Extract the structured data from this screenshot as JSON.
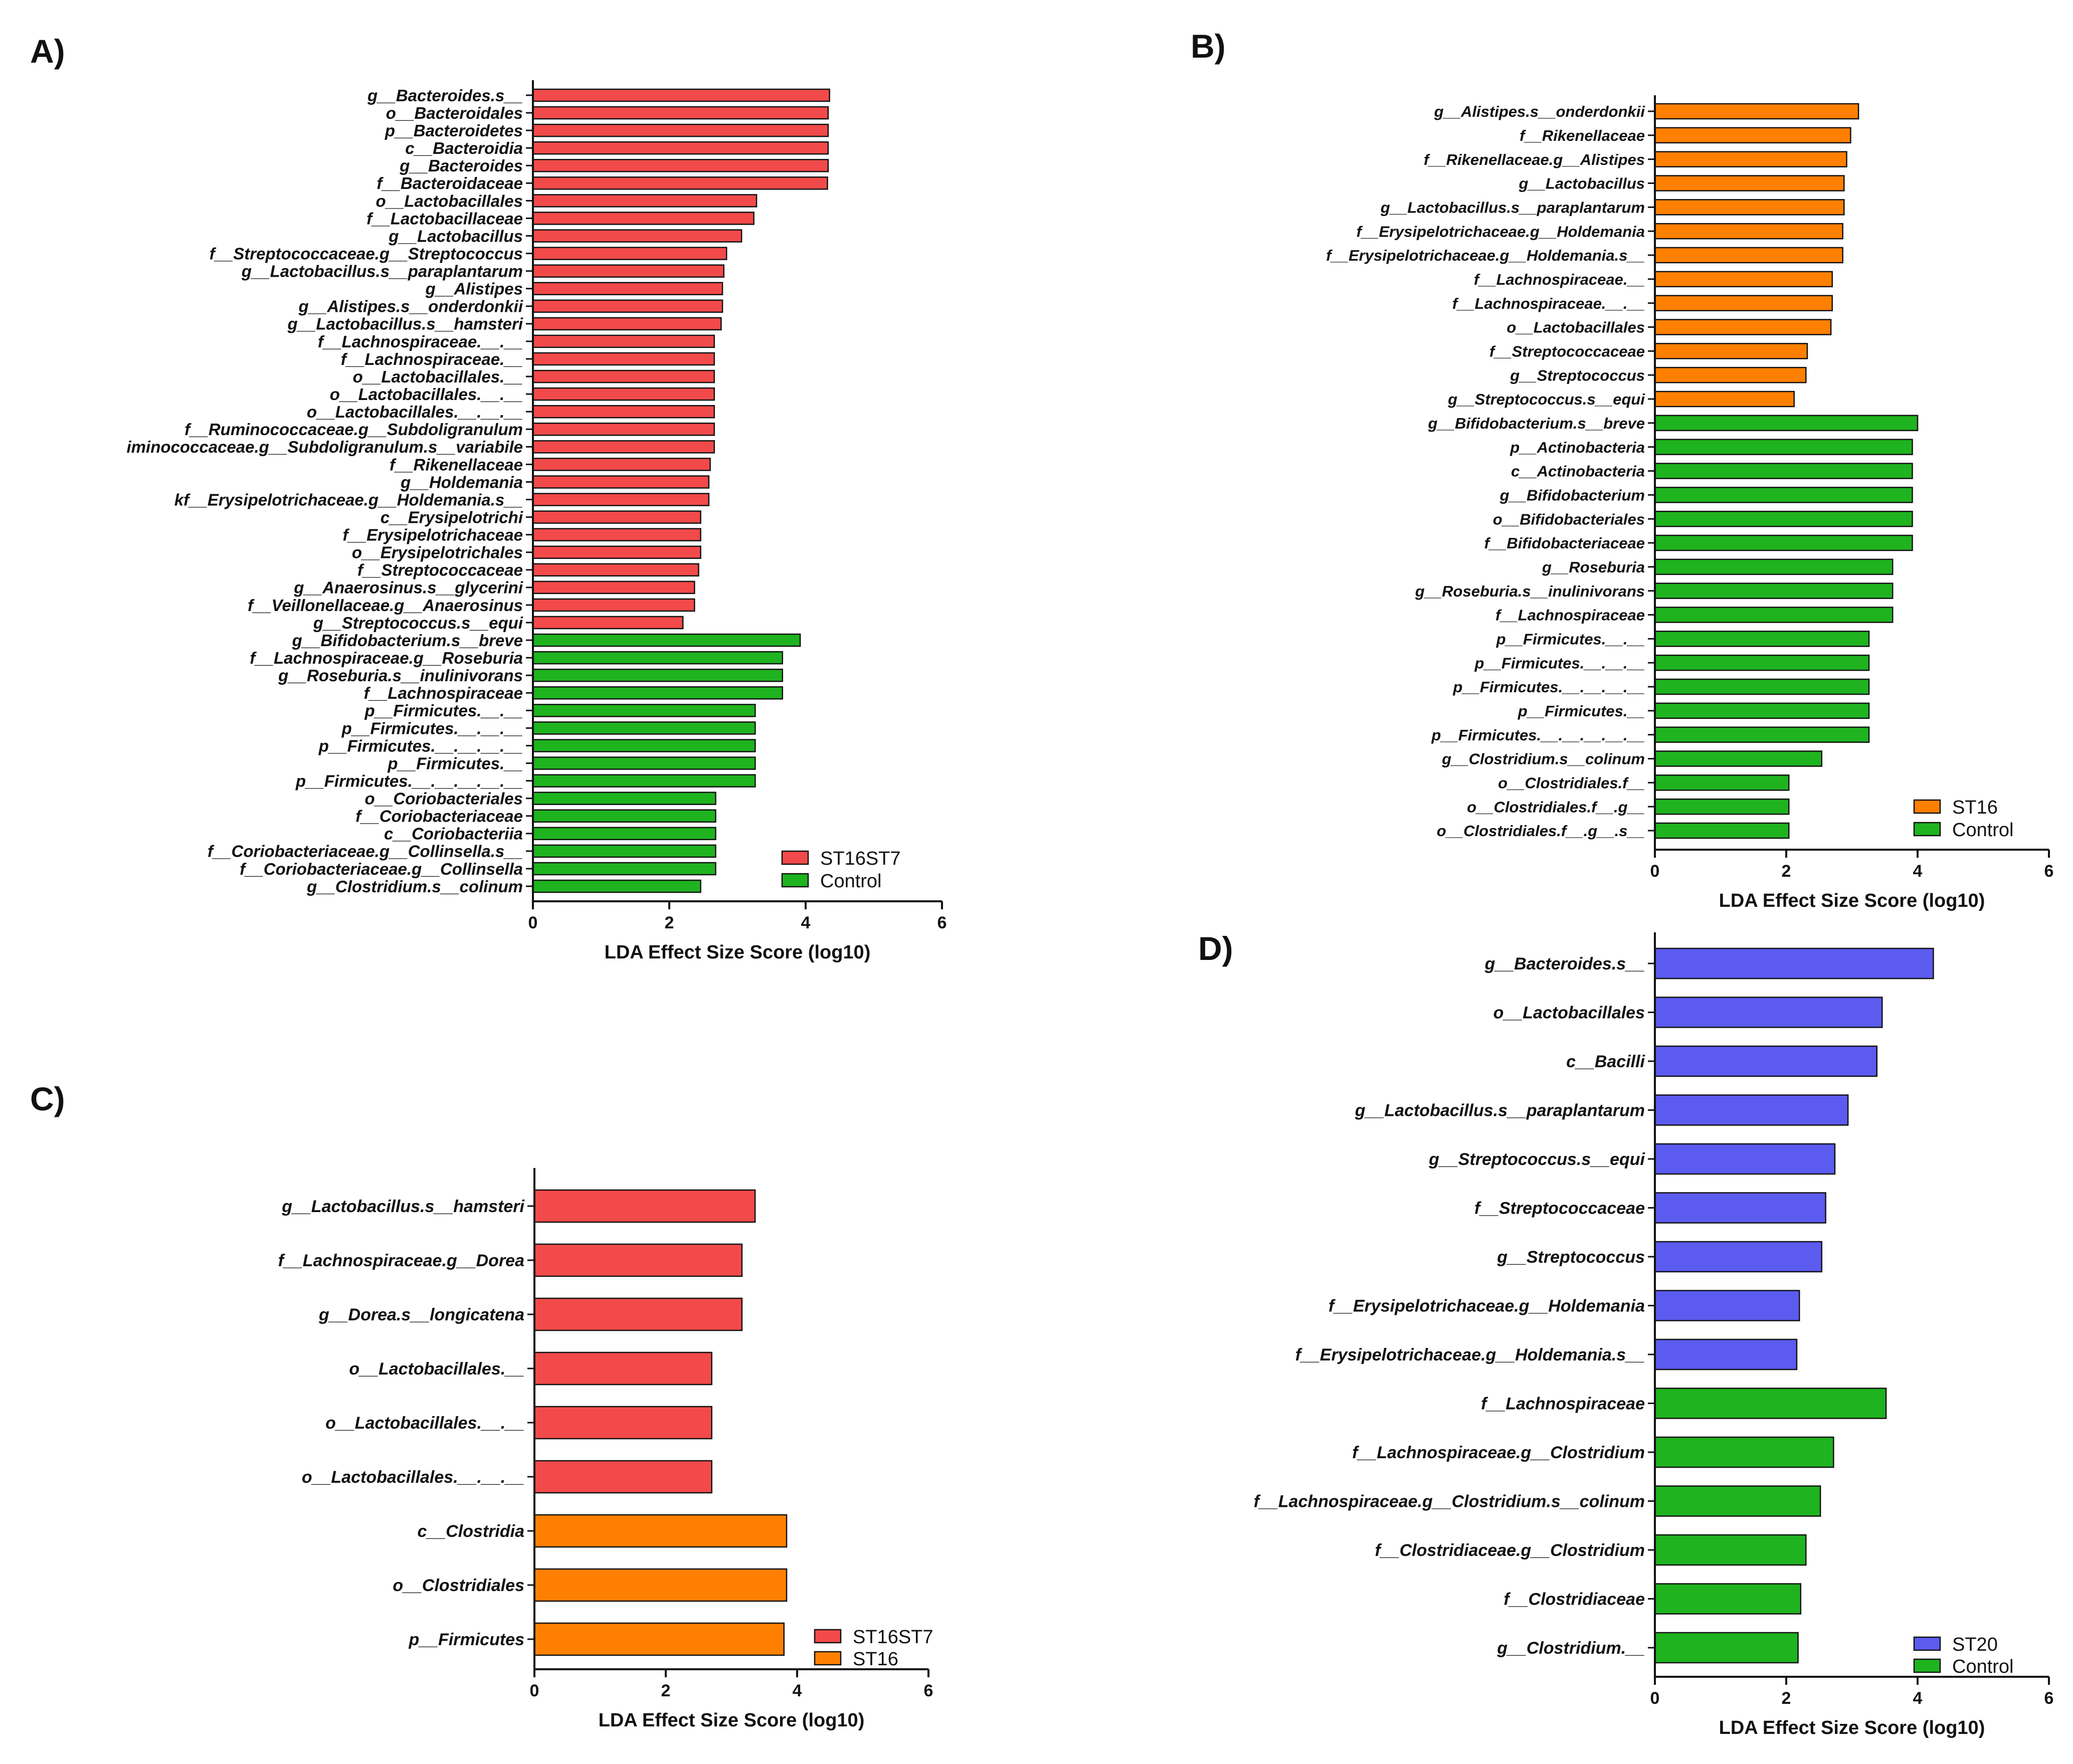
{
  "chart_data": [
    {
      "panel": "A)",
      "type": "bar",
      "orientation": "horizontal",
      "xlabel": "LDA Effect Size Score (log10)",
      "xlim": [
        0,
        6
      ],
      "xticks": [
        0,
        2,
        4,
        6
      ],
      "legend_position": "bottom-right",
      "legend": [
        {
          "name": "ST16ST7",
          "color": "#f24a4a"
        },
        {
          "name": "Control",
          "color": "#1fb31f"
        }
      ],
      "categories": [
        "g__Bacteroides.s__",
        "o__Bacteroidales",
        "p__Bacteroidetes",
        "c__Bacteroidia",
        "g__Bacteroides",
        "f__Bacteroidaceae",
        "o__Lactobacillales",
        "f__Lactobacillaceae",
        "g__Lactobacillus",
        "f__Streptococcaceae.g__Streptococcus",
        "g__Lactobacillus.s__paraplantarum",
        "g__Alistipes",
        "g__Alistipes.s__onderdonkii",
        "g__Lactobacillus.s__hamsteri",
        "f__Lachnospiraceae.__.__",
        "f__Lachnospiraceae.__",
        "o__Lactobacillales.__",
        "o__Lactobacillales.__.__",
        "o__Lactobacillales.__.__.__",
        "f__Ruminococcaceae.g__Subdoligranulum",
        "iminococcaceae.g__Subdoligranulum.s__variabile",
        "f__Rikenellaceae",
        "g__Holdemania",
        "kf__Erysipelotrichaceae.g__Holdemania.s__",
        "c__Erysipelotrichi",
        "f__Erysipelotrichaceae",
        "o__Erysipelotrichales",
        "f__Streptococcaceae",
        "g__Anaerosinus.s__glycerini",
        "f__Veillonellaceae.g__Anaerosinus",
        "g__Streptococcus.s__equi",
        "g__Bifidobacterium.s__breve",
        "f__Lachnospiraceae.g__Roseburia",
        "g__Roseburia.s__inulinivorans",
        "f__Lachnospiraceae",
        "p__Firmicutes.__.__",
        "p__Firmicutes.__.__.__",
        "p__Firmicutes.__.__.__.__",
        "p__Firmicutes.__",
        "p__Firmicutes.__.__.__.__.__",
        "o__Coriobacteriales",
        "f__Coriobacteriaceae",
        "c__Coriobacteriia",
        "f__Coriobacteriaceae.g__Collinsella.s__",
        "f__Coriobacteriaceae.g__Collinsella",
        "g__Clostridium.s__colinum"
      ],
      "values": [
        4.35,
        4.33,
        4.33,
        4.33,
        4.33,
        4.32,
        3.28,
        3.24,
        3.06,
        2.84,
        2.8,
        2.78,
        2.78,
        2.76,
        2.66,
        2.66,
        2.66,
        2.66,
        2.66,
        2.66,
        2.66,
        2.6,
        2.58,
        2.58,
        2.46,
        2.46,
        2.46,
        2.43,
        2.37,
        2.37,
        2.2,
        3.92,
        3.66,
        3.66,
        3.66,
        3.26,
        3.26,
        3.26,
        3.26,
        3.26,
        2.68,
        2.68,
        2.68,
        2.68,
        2.68,
        2.46
      ],
      "groups": [
        "ST16ST7",
        "ST16ST7",
        "ST16ST7",
        "ST16ST7",
        "ST16ST7",
        "ST16ST7",
        "ST16ST7",
        "ST16ST7",
        "ST16ST7",
        "ST16ST7",
        "ST16ST7",
        "ST16ST7",
        "ST16ST7",
        "ST16ST7",
        "ST16ST7",
        "ST16ST7",
        "ST16ST7",
        "ST16ST7",
        "ST16ST7",
        "ST16ST7",
        "ST16ST7",
        "ST16ST7",
        "ST16ST7",
        "ST16ST7",
        "ST16ST7",
        "ST16ST7",
        "ST16ST7",
        "ST16ST7",
        "ST16ST7",
        "ST16ST7",
        "ST16ST7",
        "Control",
        "Control",
        "Control",
        "Control",
        "Control",
        "Control",
        "Control",
        "Control",
        "Control",
        "Control",
        "Control",
        "Control",
        "Control",
        "Control",
        "Control"
      ]
    },
    {
      "panel": "B)",
      "type": "bar",
      "orientation": "horizontal",
      "xlabel": "LDA Effect Size Score (log10)",
      "xlim": [
        0,
        6
      ],
      "xticks": [
        0,
        2,
        4,
        6
      ],
      "legend_position": "bottom-right",
      "legend": [
        {
          "name": "ST16",
          "color": "#ff8000"
        },
        {
          "name": "Control",
          "color": "#1fb31f"
        }
      ],
      "categories": [
        "g__Alistipes.s__onderdonkii",
        "f__Rikenellaceae",
        "f__Rikenellaceae.g__Alistipes",
        "g__Lactobacillus",
        "g__Lactobacillus.s__paraplantarum",
        "f__Erysipelotrichaceae.g__Holdemania",
        "f__Erysipelotrichaceae.g__Holdemania.s__",
        "f__Lachnospiraceae.__",
        "f__Lachnospiraceae.__.__",
        "o__Lactobacillales",
        "f__Streptococcaceae",
        "g__Streptococcus",
        "g__Streptococcus.s__equi",
        "g__Bifidobacterium.s__breve",
        "p__Actinobacteria",
        "c__Actinobacteria",
        "g__Bifidobacterium",
        "o__Bifidobacteriales",
        "f__Bifidobacteriaceae",
        "g__Roseburia",
        "g__Roseburia.s__inulinivorans",
        "f__Lachnospiraceae",
        "p__Firmicutes.__.__",
        "p__Firmicutes.__.__.__",
        "p__Firmicutes.__.__.__.__",
        "p__Firmicutes.__",
        "p__Firmicutes.__.__.__.__.__",
        "g__Clostridium.s__colinum",
        "o__Clostridiales.f__",
        "o__Clostridiales.f__.g__",
        "o__Clostridiales.f__.g__.s__"
      ],
      "values": [
        3.1,
        2.98,
        2.92,
        2.88,
        2.88,
        2.86,
        2.86,
        2.7,
        2.7,
        2.68,
        2.32,
        2.3,
        2.12,
        4.0,
        3.92,
        3.92,
        3.92,
        3.92,
        3.92,
        3.62,
        3.62,
        3.62,
        3.26,
        3.26,
        3.26,
        3.26,
        3.26,
        2.54,
        2.04,
        2.04,
        2.04
      ],
      "groups": [
        "ST16",
        "ST16",
        "ST16",
        "ST16",
        "ST16",
        "ST16",
        "ST16",
        "ST16",
        "ST16",
        "ST16",
        "ST16",
        "ST16",
        "ST16",
        "Control",
        "Control",
        "Control",
        "Control",
        "Control",
        "Control",
        "Control",
        "Control",
        "Control",
        "Control",
        "Control",
        "Control",
        "Control",
        "Control",
        "Control",
        "Control",
        "Control",
        "Control"
      ]
    },
    {
      "panel": "C)",
      "type": "bar",
      "orientation": "horizontal",
      "xlabel": "LDA Effect Size Score (log10)",
      "xlim": [
        0,
        6
      ],
      "xticks": [
        0,
        2,
        4,
        6
      ],
      "legend_position": "bottom-right",
      "legend": [
        {
          "name": "ST16ST7",
          "color": "#f24a4a"
        },
        {
          "name": "ST16",
          "color": "#ff8000"
        }
      ],
      "categories": [
        "g__Lactobacillus.s__hamsteri",
        "f__Lachnospiraceae.g__Dorea",
        "g__Dorea.s__longicatena",
        "o__Lactobacillales.__",
        "o__Lactobacillales.__.__",
        "o__Lactobacillales.__.__.__",
        "c__Clostridia",
        "o__Clostridiales",
        "p__Firmicutes"
      ],
      "values": [
        3.36,
        3.16,
        3.16,
        2.7,
        2.7,
        2.7,
        3.84,
        3.84,
        3.8
      ],
      "groups": [
        "ST16ST7",
        "ST16ST7",
        "ST16ST7",
        "ST16ST7",
        "ST16ST7",
        "ST16ST7",
        "ST16",
        "ST16",
        "ST16"
      ]
    },
    {
      "panel": "D)",
      "type": "bar",
      "orientation": "horizontal",
      "xlabel": "LDA Effect Size Score (log10)",
      "xlim": [
        0,
        6
      ],
      "xticks": [
        0,
        2,
        4,
        6
      ],
      "legend_position": "bottom-right",
      "legend": [
        {
          "name": "ST20",
          "color": "#5b5bf0"
        },
        {
          "name": "Control",
          "color": "#1fb31f"
        }
      ],
      "categories": [
        "g__Bacteroides.s__",
        "o__Lactobacillales",
        "c__Bacilli",
        "g__Lactobacillus.s__paraplantarum",
        "g__Streptococcus.s__equi",
        "f__Streptococcaceae",
        "g__Streptococcus",
        "f__Erysipelotrichaceae.g__Holdemania",
        "f__Erysipelotrichaceae.g__Holdemania.s__",
        "f__Lachnospiraceae",
        "f__Lachnospiraceae.g__Clostridium",
        "f__Lachnospiraceae.g__Clostridium.s__colinum",
        "f__Clostridiaceae.g__Clostridium",
        "f__Clostridiaceae",
        "g__Clostridium.__"
      ],
      "values": [
        4.24,
        3.46,
        3.38,
        2.94,
        2.74,
        2.6,
        2.54,
        2.2,
        2.16,
        3.52,
        2.72,
        2.52,
        2.3,
        2.22,
        2.18
      ],
      "groups": [
        "ST20",
        "ST20",
        "ST20",
        "ST20",
        "ST20",
        "ST20",
        "ST20",
        "ST20",
        "ST20",
        "Control",
        "Control",
        "Control",
        "Control",
        "Control",
        "Control"
      ]
    }
  ]
}
